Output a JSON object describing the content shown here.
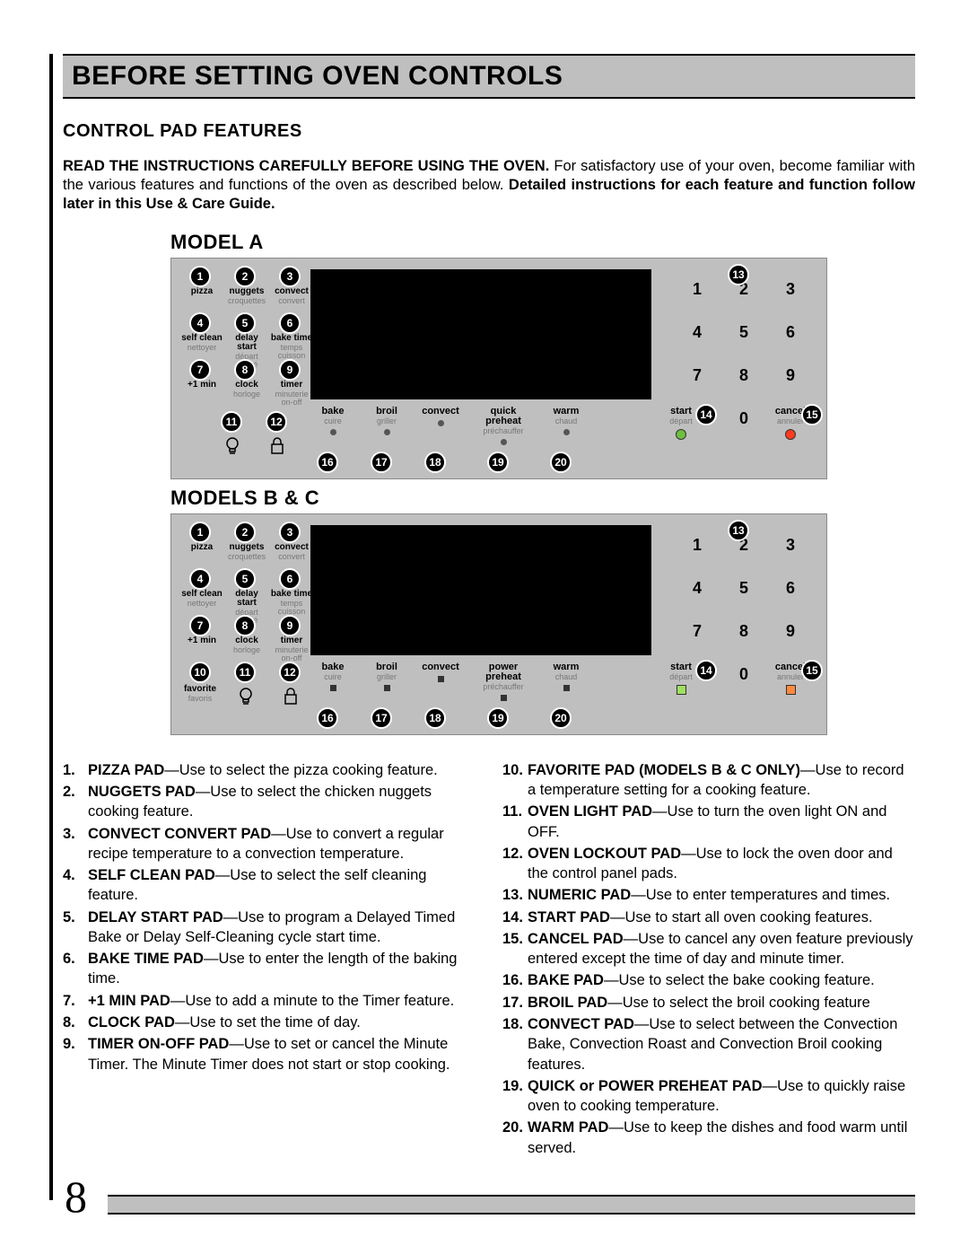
{
  "header": {
    "title": "BEFORE SETTING OVEN CONTROLS"
  },
  "subheader": {
    "title": "CONTROL PAD FEATURES"
  },
  "intro": {
    "lead_bold": "READ THE INSTRUCTIONS CAREFULLY BEFORE USING THE OVEN.",
    "body1": " For satisfactory use of your oven, become familiar with the various features and functions of the oven as described below. ",
    "trail_bold": "Detailed instructions for each feature and function follow later in this Use & Care Guide."
  },
  "modelA_title": "MODEL A",
  "modelBC_title": "MODELS B & C",
  "keypad": [
    "1",
    "2",
    "3",
    "4",
    "5",
    "6",
    "7",
    "8",
    "9",
    "",
    "0",
    ""
  ],
  "panel_colors": {
    "bg": "#bfbfbf",
    "display": "#000000",
    "callout_bg": "#000000",
    "callout_border": "#ffffff",
    "sublabel": "#777777",
    "A_start_led": "#6fbf3f",
    "A_cancel_led": "#ff3b1f",
    "BC_start_led": "#9fe060",
    "BC_cancel_led": "#ff8a3d"
  },
  "labels_top": [
    {
      "en": "pizza",
      "fr": ""
    },
    {
      "en": "nuggets",
      "fr": "croquettes"
    },
    {
      "en": "convect",
      "fr": "convert"
    },
    {
      "en": "self clean",
      "fr": "nettoyer"
    },
    {
      "en": "delay start",
      "fr": "départ différé"
    },
    {
      "en": "bake time",
      "fr": "temps cuisson"
    },
    {
      "en": "+1 min",
      "fr": ""
    },
    {
      "en": "clock",
      "fr": "horloge"
    },
    {
      "en": "timer",
      "fr": "minuterie on-off"
    }
  ],
  "label_favorite": {
    "en": "favorite",
    "fr": "favoris"
  },
  "labels_bottom": {
    "bake": {
      "en": "bake",
      "fr": "cuire"
    },
    "broil": {
      "en": "broil",
      "fr": "griller"
    },
    "convect": {
      "en": "convect",
      "fr": ""
    },
    "preheatA": {
      "en": "quick preheat",
      "fr": "préchauffer"
    },
    "preheatBC": {
      "en": "power preheat",
      "fr": "préchauffer"
    },
    "warm": {
      "en": "warm",
      "fr": "chaud"
    },
    "start": {
      "en": "start",
      "fr": "départ"
    },
    "cancel": {
      "en": "cancel",
      "fr": "annuler"
    }
  },
  "definitions_left": [
    {
      "n": "1.",
      "t": "PIZZA PAD",
      "d": "—Use to select the pizza cooking feature."
    },
    {
      "n": "2.",
      "t": "NUGGETS PAD",
      "d": "—Use to select the chicken nuggets cooking feature."
    },
    {
      "n": "3.",
      "t": "CONVECT CONVERT PAD",
      "d": "—Use to convert a regular recipe temperature to a convection temperature."
    },
    {
      "n": "4.",
      "t": "SELF CLEAN PAD",
      "d": "—Use to select the self cleaning feature."
    },
    {
      "n": "5.",
      "t": "DELAY START PAD",
      "d": "—Use to program a Delayed Timed Bake or Delay Self-Cleaning cycle start time."
    },
    {
      "n": "6.",
      "t": "BAKE TIME PAD",
      "d": "—Use to enter the length of the baking time."
    },
    {
      "n": "7.",
      "t": "+1 MIN PAD",
      "d": "—Use to add a minute to the Timer feature."
    },
    {
      "n": "8.",
      "t": "CLOCK PAD",
      "d": "—Use to set the time of day."
    },
    {
      "n": "9.",
      "t": "TIMER ON-OFF PAD",
      "d": "—Use to set or cancel the Minute Timer. The Minute Timer does not start or stop cooking."
    }
  ],
  "definitions_right": [
    {
      "n": "10.",
      "t": "FAVORITE PAD (MODELS B & C ONLY)",
      "d": "—Use to record a temperature setting for a cooking feature."
    },
    {
      "n": "11.",
      "t": "OVEN LIGHT PAD",
      "d": "—Use to turn the oven light ON and OFF."
    },
    {
      "n": "12.",
      "t": "OVEN LOCKOUT PAD",
      "d": "—Use to lock the oven door and the control panel pads."
    },
    {
      "n": "13.",
      "t": "NUMERIC PAD",
      "d": "—Use to enter temperatures and times."
    },
    {
      "n": "14.",
      "t": "START PAD",
      "d": "—Use to start all oven cooking features."
    },
    {
      "n": "15.",
      "t": "CANCEL PAD",
      "d": "—Use to cancel any oven feature previously entered except the time of day and minute timer."
    },
    {
      "n": "16.",
      "t": "BAKE PAD",
      "d": "—Use to select the bake cooking feature."
    },
    {
      "n": "17.",
      "t": "BROIL PAD",
      "d": "—Use to select the broil cooking feature"
    },
    {
      "n": "18.",
      "t": "CONVECT PAD",
      "d": "—Use to select between the Convection Bake, Convection Roast and Convection Broil cooking features."
    },
    {
      "n": "19.",
      "t": "QUICK or POWER PREHEAT PAD",
      "d": "—Use to quickly raise oven to cooking temperature."
    },
    {
      "n": "20.",
      "t": "WARM PAD",
      "d": "—Use to keep the dishes and food warm until served."
    }
  ],
  "page_number": "8"
}
